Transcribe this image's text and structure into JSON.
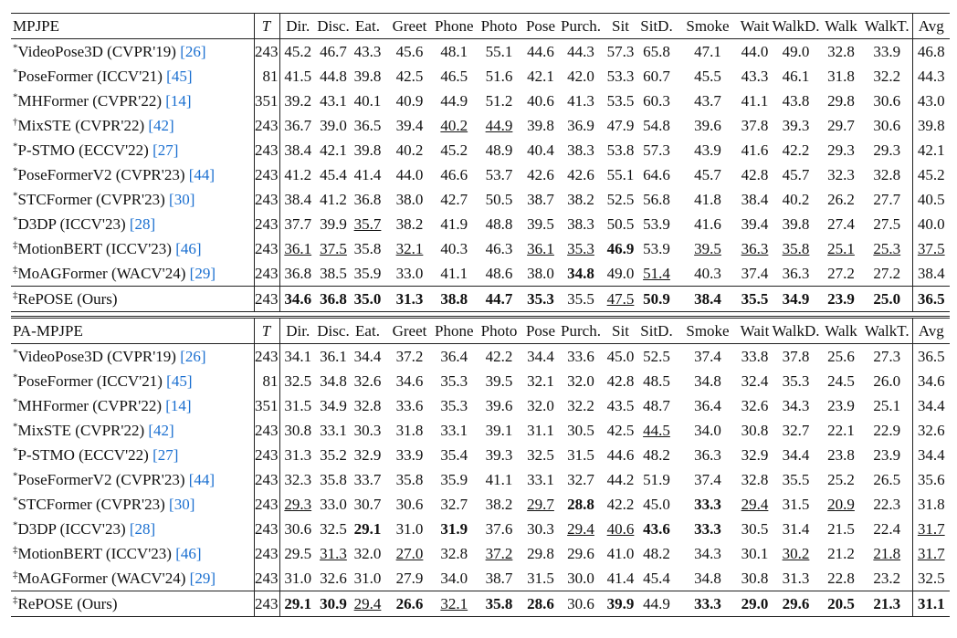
{
  "tables": [
    {
      "header": [
        "MPJPE",
        "T",
        "Dir.",
        "Disc.",
        "Eat.",
        "Greet",
        "Phone",
        "Photo",
        "Pose",
        "Purch.",
        "Sit",
        "SitD.",
        "Smoke",
        "Wait",
        "WalkD.",
        "Walk",
        "WalkT.",
        "Avg"
      ],
      "rows": [
        {
          "mark": "*",
          "method": "VideoPose3D (CVPR'19)",
          "ref": "[26]",
          "T": 243,
          "values": [
            "45.2",
            "46.7",
            "43.3",
            "45.6",
            "48.1",
            "55.1",
            "44.6",
            "44.3",
            "57.3",
            "65.8",
            "47.1",
            "44.0",
            "49.0",
            "32.8",
            "33.9",
            "46.8"
          ],
          "bold": [],
          "underline": []
        },
        {
          "mark": "*",
          "method": "PoseFormer (ICCV'21)",
          "ref": "[45]",
          "T": 81,
          "values": [
            "41.5",
            "44.8",
            "39.8",
            "42.5",
            "46.5",
            "51.6",
            "42.1",
            "42.0",
            "53.3",
            "60.7",
            "45.5",
            "43.3",
            "46.1",
            "31.8",
            "32.2",
            "44.3"
          ],
          "bold": [],
          "underline": []
        },
        {
          "mark": "*",
          "method": "MHFormer (CVPR'22)",
          "ref": "[14]",
          "T": 351,
          "values": [
            "39.2",
            "43.1",
            "40.1",
            "40.9",
            "44.9",
            "51.2",
            "40.6",
            "41.3",
            "53.5",
            "60.3",
            "43.7",
            "41.1",
            "43.8",
            "29.8",
            "30.6",
            "43.0"
          ],
          "bold": [],
          "underline": []
        },
        {
          "mark": "†",
          "method": "MixSTE (CVPR'22)",
          "ref": "[42]",
          "T": 243,
          "values": [
            "36.7",
            "39.0",
            "36.5",
            "39.4",
            "40.2",
            "44.9",
            "39.8",
            "36.9",
            "47.9",
            "54.8",
            "39.6",
            "37.8",
            "39.3",
            "29.7",
            "30.6",
            "39.8"
          ],
          "bold": [],
          "underline": [
            4,
            5
          ]
        },
        {
          "mark": "*",
          "method": "P-STMO (ECCV'22)",
          "ref": "[27]",
          "T": 243,
          "values": [
            "38.4",
            "42.1",
            "39.8",
            "40.2",
            "45.2",
            "48.9",
            "40.4",
            "38.3",
            "53.8",
            "57.3",
            "43.9",
            "41.6",
            "42.2",
            "29.3",
            "29.3",
            "42.1"
          ],
          "bold": [],
          "underline": []
        },
        {
          "mark": "*",
          "method": "PoseFormerV2 (CVPR'23)",
          "ref": "[44]",
          "T": 243,
          "values": [
            "41.2",
            "45.4",
            "41.4",
            "44.0",
            "46.6",
            "53.7",
            "42.6",
            "42.6",
            "55.1",
            "64.6",
            "45.7",
            "42.8",
            "45.7",
            "32.3",
            "32.8",
            "45.2"
          ],
          "bold": [],
          "underline": []
        },
        {
          "mark": "*",
          "method": "STCFormer (CVPR'23)",
          "ref": "[30]",
          "T": 243,
          "values": [
            "38.4",
            "41.2",
            "36.8",
            "38.0",
            "42.7",
            "50.5",
            "38.7",
            "38.2",
            "52.5",
            "56.8",
            "41.8",
            "38.4",
            "40.2",
            "26.2",
            "27.7",
            "40.5"
          ],
          "bold": [],
          "underline": []
        },
        {
          "mark": "*",
          "method": "D3DP (ICCV'23)",
          "ref": "[28]",
          "T": 243,
          "values": [
            "37.7",
            "39.9",
            "35.7",
            "38.2",
            "41.9",
            "48.8",
            "39.5",
            "38.3",
            "50.5",
            "53.9",
            "41.6",
            "39.4",
            "39.8",
            "27.4",
            "27.5",
            "40.0"
          ],
          "bold": [],
          "underline": [
            2
          ]
        },
        {
          "mark": "‡",
          "method": "MotionBERT (ICCV'23)",
          "ref": "[46]",
          "T": 243,
          "values": [
            "36.1",
            "37.5",
            "35.8",
            "32.1",
            "40.3",
            "46.3",
            "36.1",
            "35.3",
            "46.9",
            "53.9",
            "39.5",
            "36.3",
            "35.8",
            "25.1",
            "25.3",
            "37.5"
          ],
          "bold": [
            8
          ],
          "underline": [
            0,
            1,
            3,
            6,
            7,
            10,
            11,
            12,
            13,
            14,
            15
          ]
        },
        {
          "mark": "‡",
          "method": "MoAGFormer (WACV'24)",
          "ref": "[29]",
          "T": 243,
          "values": [
            "36.8",
            "38.5",
            "35.9",
            "33.0",
            "41.1",
            "48.6",
            "38.0",
            "34.8",
            "49.0",
            "51.4",
            "40.3",
            "37.4",
            "36.3",
            "27.2",
            "27.2",
            "38.4"
          ],
          "bold": [
            7
          ],
          "underline": [
            9
          ]
        },
        {
          "mark": "‡",
          "method": "RePOSE (Ours)",
          "T": 243,
          "values": [
            "34.6",
            "36.8",
            "35.0",
            "31.3",
            "38.8",
            "44.7",
            "35.3",
            "35.5",
            "47.5",
            "50.9",
            "38.4",
            "35.5",
            "34.9",
            "23.9",
            "25.0",
            "36.5"
          ],
          "bold": [
            0,
            1,
            2,
            3,
            4,
            5,
            6,
            9,
            10,
            11,
            12,
            13,
            14,
            15
          ],
          "underline": [
            8
          ]
        }
      ]
    },
    {
      "header": [
        "PA-MPJPE",
        "T",
        "Dir.",
        "Disc.",
        "Eat.",
        "Greet",
        "Phone",
        "Photo",
        "Pose",
        "Purch.",
        "Sit",
        "SitD.",
        "Smoke",
        "Wait",
        "WalkD.",
        "Walk",
        "WalkT.",
        "Avg"
      ],
      "rows": [
        {
          "mark": "*",
          "method": "VideoPose3D (CVPR'19)",
          "ref": "[26]",
          "T": 243,
          "values": [
            "34.1",
            "36.1",
            "34.4",
            "37.2",
            "36.4",
            "42.2",
            "34.4",
            "33.6",
            "45.0",
            "52.5",
            "37.4",
            "33.8",
            "37.8",
            "25.6",
            "27.3",
            "36.5"
          ],
          "bold": [],
          "underline": []
        },
        {
          "mark": "*",
          "method": "PoseFormer (ICCV'21)",
          "ref": "[45]",
          "T": 81,
          "values": [
            "32.5",
            "34.8",
            "32.6",
            "34.6",
            "35.3",
            "39.5",
            "32.1",
            "32.0",
            "42.8",
            "48.5",
            "34.8",
            "32.4",
            "35.3",
            "24.5",
            "26.0",
            "34.6"
          ],
          "bold": [],
          "underline": []
        },
        {
          "mark": "*",
          "method": "MHFormer (CVPR'22)",
          "ref": "[14]",
          "T": 351,
          "values": [
            "31.5",
            "34.9",
            "32.8",
            "33.6",
            "35.3",
            "39.6",
            "32.0",
            "32.2",
            "43.5",
            "48.7",
            "36.4",
            "32.6",
            "34.3",
            "23.9",
            "25.1",
            "34.4"
          ],
          "bold": [],
          "underline": []
        },
        {
          "mark": "*",
          "method": "MixSTE (CVPR'22)",
          "ref": "[42]",
          "T": 243,
          "values": [
            "30.8",
            "33.1",
            "30.3",
            "31.8",
            "33.1",
            "39.1",
            "31.1",
            "30.5",
            "42.5",
            "44.5",
            "34.0",
            "30.8",
            "32.7",
            "22.1",
            "22.9",
            "32.6"
          ],
          "bold": [],
          "underline": [
            9
          ]
        },
        {
          "mark": "*",
          "method": "P-STMO (ECCV'22)",
          "ref": "[27]",
          "T": 243,
          "values": [
            "31.3",
            "35.2",
            "32.9",
            "33.9",
            "35.4",
            "39.3",
            "32.5",
            "31.5",
            "44.6",
            "48.2",
            "36.3",
            "32.9",
            "34.4",
            "23.8",
            "23.9",
            "34.4"
          ],
          "bold": [],
          "underline": []
        },
        {
          "mark": "*",
          "method": "PoseFormerV2 (CVPR'23)",
          "ref": "[44]",
          "T": 243,
          "values": [
            "32.3",
            "35.8",
            "33.7",
            "35.8",
            "35.9",
            "41.1",
            "33.1",
            "32.7",
            "44.2",
            "51.9",
            "37.4",
            "32.8",
            "35.5",
            "25.2",
            "26.5",
            "35.6"
          ],
          "bold": [],
          "underline": []
        },
        {
          "mark": "*",
          "method": "STCFormer (CVPR'23)",
          "ref": "[30]",
          "T": 243,
          "values": [
            "29.3",
            "33.0",
            "30.7",
            "30.6",
            "32.7",
            "38.2",
            "29.7",
            "28.8",
            "42.2",
            "45.0",
            "33.3",
            "29.4",
            "31.5",
            "20.9",
            "22.3",
            "31.8"
          ],
          "bold": [
            7,
            10
          ],
          "underline": [
            0,
            6,
            11,
            13
          ]
        },
        {
          "mark": "*",
          "method": "D3DP (ICCV'23)",
          "ref": "[28]",
          "T": 243,
          "values": [
            "30.6",
            "32.5",
            "29.1",
            "31.0",
            "31.9",
            "37.6",
            "30.3",
            "29.4",
            "40.6",
            "43.6",
            "33.3",
            "30.5",
            "31.4",
            "21.5",
            "22.4",
            "31.7"
          ],
          "bold": [
            2,
            4,
            9,
            10
          ],
          "underline": [
            7,
            8,
            15
          ]
        },
        {
          "mark": "‡",
          "method": "MotionBERT (ICCV'23)",
          "ref": "[46]",
          "T": 243,
          "values": [
            "29.5",
            "31.3",
            "32.0",
            "27.0",
            "32.8",
            "37.2",
            "29.8",
            "29.6",
            "41.0",
            "48.2",
            "34.3",
            "30.1",
            "30.2",
            "21.2",
            "21.8",
            "31.7"
          ],
          "bold": [],
          "underline": [
            1,
            3,
            5,
            12,
            14,
            15
          ]
        },
        {
          "mark": "‡",
          "method": "MoAGFormer (WACV'24)",
          "ref": "[29]",
          "T": 243,
          "values": [
            "31.0",
            "32.6",
            "31.0",
            "27.9",
            "34.0",
            "38.7",
            "31.5",
            "30.0",
            "41.4",
            "45.4",
            "34.8",
            "30.8",
            "31.3",
            "22.8",
            "23.2",
            "32.5"
          ],
          "bold": [],
          "underline": []
        },
        {
          "mark": "‡",
          "method": "RePOSE (Ours)",
          "T": 243,
          "values": [
            "29.1",
            "30.9",
            "29.4",
            "26.6",
            "32.1",
            "35.8",
            "28.6",
            "30.6",
            "39.9",
            "44.9",
            "33.3",
            "29.0",
            "29.6",
            "20.5",
            "21.3",
            "31.1"
          ],
          "bold": [
            0,
            1,
            3,
            5,
            6,
            8,
            10,
            11,
            12,
            13,
            14,
            15
          ],
          "underline": [
            2,
            4
          ]
        }
      ]
    }
  ]
}
